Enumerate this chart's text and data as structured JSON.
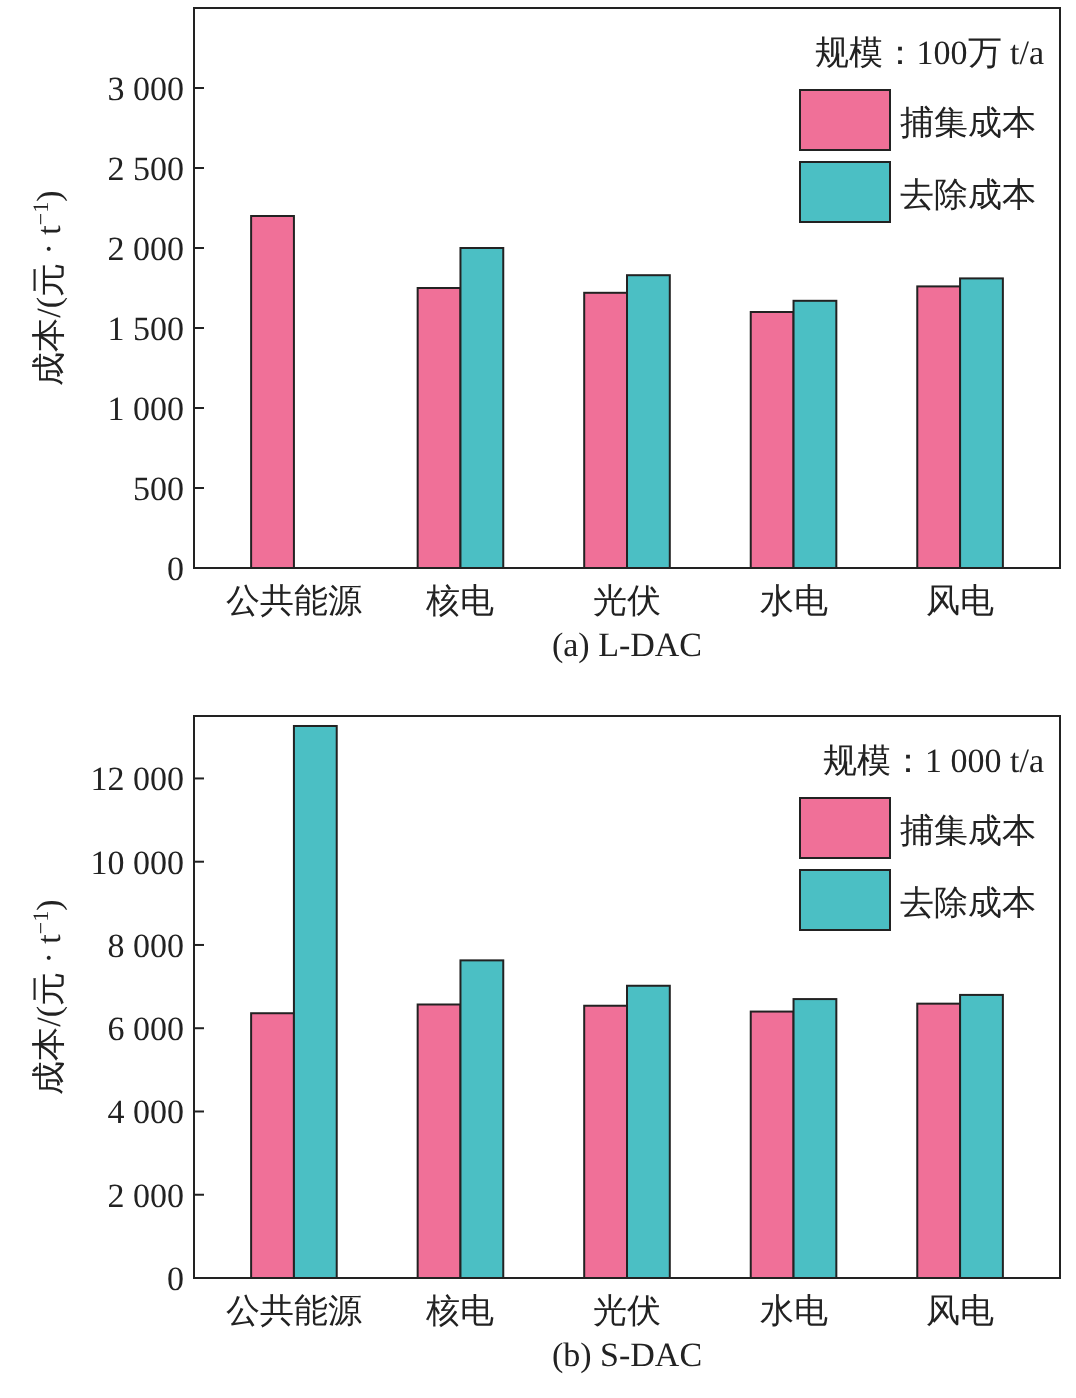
{
  "chart_data": [
    {
      "type": "bar",
      "xlabel": "(a) L-DAC",
      "ylabel": "成本/(元 · t$^{−1}$)",
      "legend_title": "规模：100万 t/a",
      "legend": "top right",
      "grid": false,
      "categories": [
        "公共能源",
        "核电",
        "光伏",
        "水电",
        "风电"
      ],
      "series": [
        {
          "name": "捕集成本",
          "color": "#f07098",
          "values": [
            2200,
            1750,
            1720,
            1600,
            1760
          ]
        },
        {
          "name": "去除成本",
          "color": "#4bbfc4",
          "values": [
            null,
            2000,
            1830,
            1670,
            1810
          ]
        }
      ],
      "ylim": [
        0,
        3500
      ],
      "yticks": [
        {
          "value": 0,
          "label": "0"
        },
        {
          "value": 500,
          "label": "500"
        },
        {
          "value": 1000,
          "label": "1 000"
        },
        {
          "value": 1500,
          "label": "1 500"
        },
        {
          "value": 2000,
          "label": "2 000"
        },
        {
          "value": 2500,
          "label": "2 500"
        },
        {
          "value": 3000,
          "label": "3 000"
        }
      ]
    },
    {
      "type": "bar",
      "xlabel": "(b) S-DAC",
      "ylabel": "成本/(元 · t$^{−1}$)",
      "legend_title": "规模：1 000 t/a",
      "legend": "top right",
      "grid": false,
      "categories": [
        "公共能源",
        "核电",
        "光伏",
        "水电",
        "风电"
      ],
      "series": [
        {
          "name": "捕集成本",
          "color": "#f07098",
          "values": [
            6360,
            6570,
            6540,
            6400,
            6590
          ]
        },
        {
          "name": "去除成本",
          "color": "#4bbfc4",
          "values": [
            13260,
            7630,
            7020,
            6700,
            6800
          ]
        }
      ],
      "ylim": [
        0,
        13500
      ],
      "yticks": [
        {
          "value": 0,
          "label": "0"
        },
        {
          "value": 2000,
          "label": "2 000"
        },
        {
          "value": 4000,
          "label": "4 000"
        },
        {
          "value": 6000,
          "label": "6 000"
        },
        {
          "value": 8000,
          "label": "8 000"
        },
        {
          "value": 10000,
          "label": "10 000"
        },
        {
          "value": 12000,
          "label": "12 000"
        }
      ]
    }
  ]
}
